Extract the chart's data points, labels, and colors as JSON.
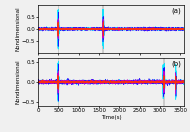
{
  "title_a": "(a)",
  "title_b": "(b)",
  "ylabel": "Nondimensional",
  "xlabel": "Time(s)",
  "xlim": [
    0,
    3600
  ],
  "ylim_a": [
    -1.0,
    1.0
  ],
  "ylim_b": [
    -0.6,
    0.6
  ],
  "yticks_a": [
    -0.5,
    0,
    0.5
  ],
  "yticks_b": [
    -0.5,
    0,
    0.5
  ],
  "xticks": [
    0,
    500,
    1000,
    1500,
    2000,
    2500,
    3000,
    3500
  ],
  "gray_lines_a": [
    500,
    1600
  ],
  "gray_lines_b": [
    500,
    3100
  ],
  "line_colors": [
    "#00e5ff",
    "#1a00ff",
    "#cc00cc",
    "#ff3300"
  ],
  "gray_color": "#888888",
  "bg_color": "#f0f0f0",
  "seed": 42,
  "n_points": 3600
}
